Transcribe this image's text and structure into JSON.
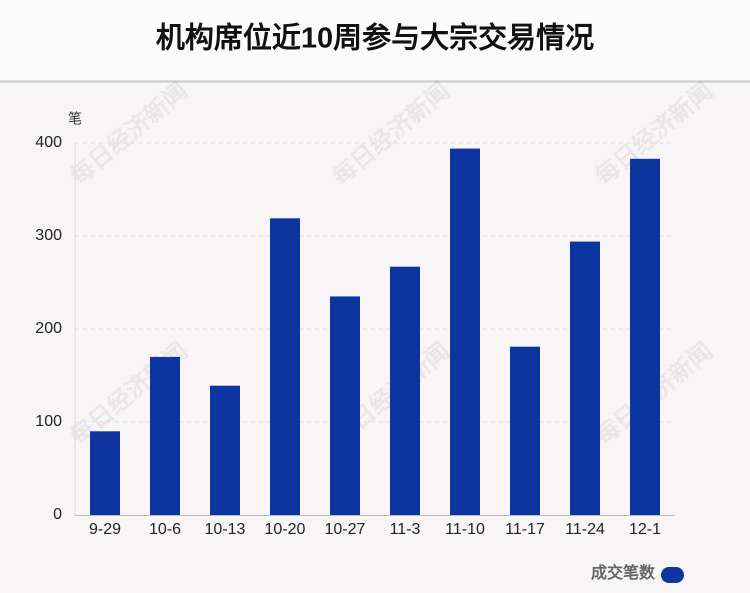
{
  "chart_data": {
    "type": "bar",
    "title": "机构席位近10周参与大宗交易情况",
    "y_unit": "笔",
    "categories": [
      "9-29",
      "10-6",
      "10-13",
      "10-20",
      "10-27",
      "11-3",
      "11-10",
      "11-17",
      "11-24",
      "12-1"
    ],
    "series": [
      {
        "name": "成交笔数",
        "color": "#0d35a0",
        "values": [
          90,
          170,
          139,
          319,
          235,
          267,
          394,
          181,
          294,
          383
        ]
      }
    ],
    "ylim": [
      0,
      400
    ],
    "yticks": [
      0,
      100,
      200,
      300,
      400
    ],
    "grid": true,
    "legend": "bottom-right",
    "watermark": "每日经济新闻"
  }
}
